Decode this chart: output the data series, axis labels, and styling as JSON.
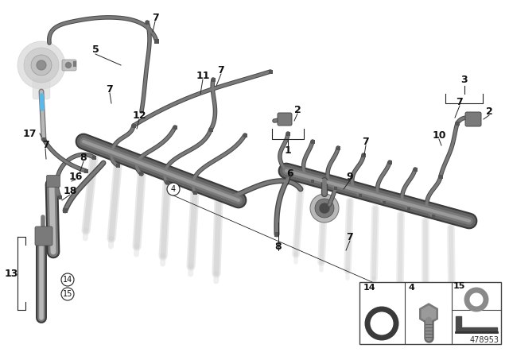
{
  "bg_color": "#ffffff",
  "part_number": "478953",
  "border_color": "#cccccc",
  "dark_gray": "#4a4a4a",
  "mid_gray": "#7a7a7a",
  "light_gray": "#b8b8b8",
  "very_light_gray": "#d8d8d8",
  "ghost_gray": "#c8c8c8",
  "tube_color": "#6a6a6a",
  "fitting_color": "#555555",
  "blue_highlight": "#5bb8e8",
  "label_color": "#111111",
  "line_color": "#222222",
  "pump_body": "#aaaaaa",
  "rail_color": "#636363"
}
